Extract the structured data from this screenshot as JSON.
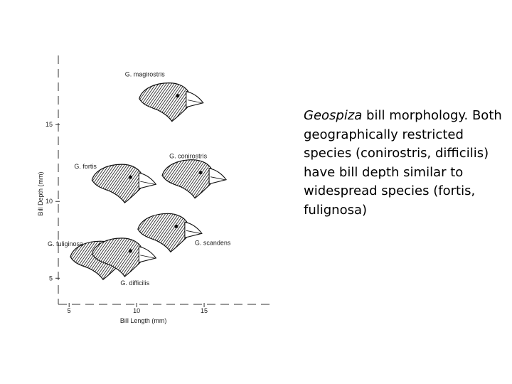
{
  "chart_data": {
    "type": "scatter",
    "xlabel": "Bill Length (mm)",
    "ylabel": "Bill Depth (mm)",
    "xlim": [
      4.2,
      20
    ],
    "ylim": [
      3.3,
      19.5
    ],
    "x_ticks": [
      5,
      10,
      15
    ],
    "y_ticks": [
      5,
      10,
      15
    ],
    "x_tick_labels": [
      "5",
      "10",
      "15"
    ],
    "y_tick_labels": [
      "5",
      "10",
      "15"
    ],
    "grid": false,
    "legend": "none",
    "points": [
      {
        "label": "G. magirostris",
        "x": 12.3,
        "y": 16.6
      },
      {
        "label": "G. conirostris",
        "x": 14.0,
        "y": 11.6
      },
      {
        "label": "G. fortis",
        "x": 8.8,
        "y": 11.3
      },
      {
        "label": "G. scandens",
        "x": 12.2,
        "y": 8.1
      },
      {
        "label": "G. fuliginosa",
        "x": 7.2,
        "y": 6.3
      },
      {
        "label": "G. difficilis",
        "x": 8.8,
        "y": 6.5
      }
    ]
  },
  "caption": {
    "genus": "Geospiza",
    "text": " bill morphology. Both geographically restricted species (conirostris, difficilis) have bill depth similar to widespread species (fortis, fulignosa)"
  }
}
